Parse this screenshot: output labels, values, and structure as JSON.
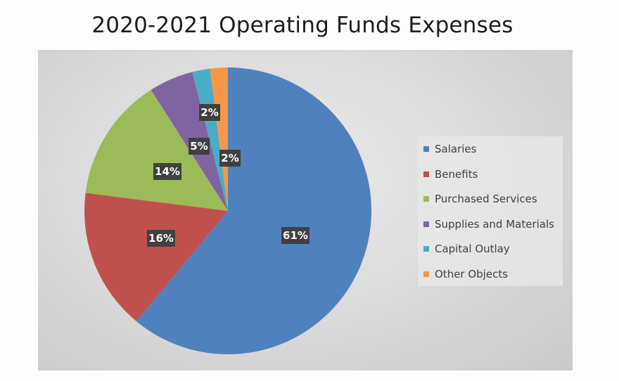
{
  "chart_data": {
    "type": "pie",
    "title": "2020-2021 Operating Funds Expenses",
    "categories": [
      "Salaries",
      "Benefits",
      "Purchased Services",
      "Supplies and Materials",
      "Capital Outlay",
      "Other Objects"
    ],
    "values": [
      61,
      16,
      14,
      5,
      2,
      2
    ],
    "data_labels": [
      "61%",
      "16%",
      "14%",
      "5%",
      "2%",
      "2%"
    ],
    "unit": "%",
    "colors": [
      "#4f81bd",
      "#c0504d",
      "#9bbb59",
      "#8064a2",
      "#4bacc6",
      "#f79646"
    ],
    "legend_position": "right",
    "start_angle_deg": 0,
    "direction": "clockwise"
  }
}
